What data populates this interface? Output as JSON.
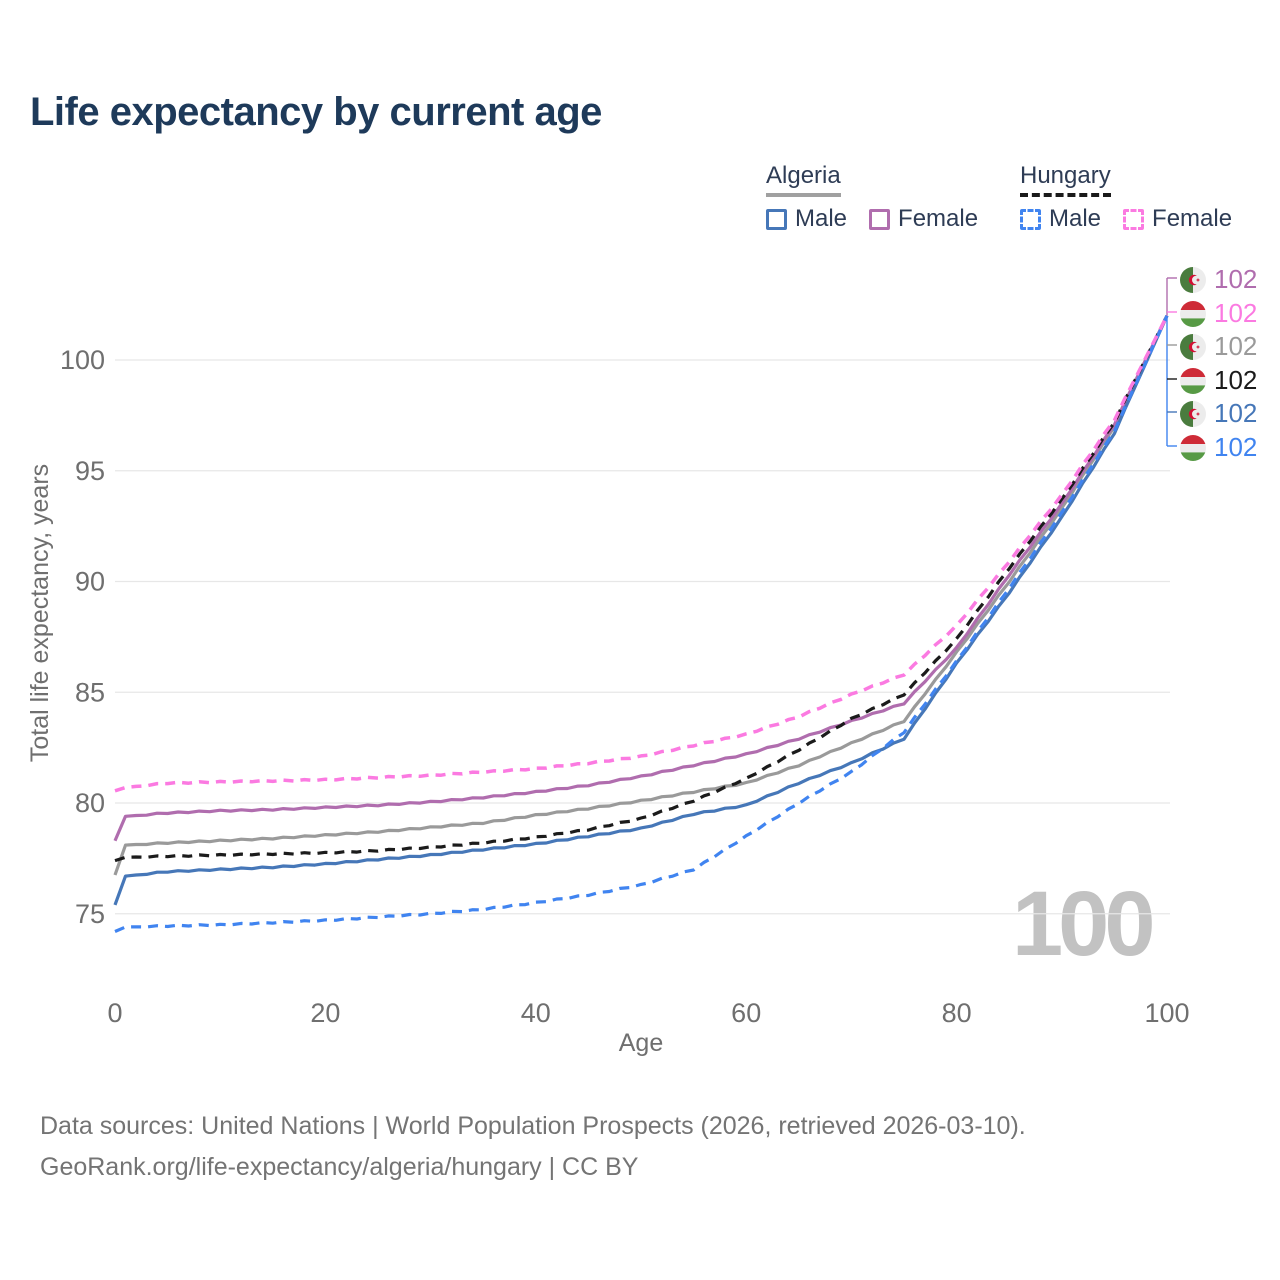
{
  "title": "Life expectancy by current age",
  "legend": {
    "algeria": {
      "title": "Algeria",
      "male": "Male",
      "female": "Female"
    },
    "hungary": {
      "title": "Hungary",
      "male": "Male",
      "female": "Female"
    }
  },
  "watermark": "100",
  "footer": {
    "line1": "Data sources: United Nations | World Population Prospects (2026, retrieved 2026-03-10).",
    "line2": "GeoRank.org/life-expectancy/algeria/hungary | CC BY"
  },
  "colors": {
    "title_text": "#1e3a5a",
    "legend_text": "#2e3c55",
    "axis_text": "#6f6f6f",
    "gridline": "#e7e7e7",
    "footer_text": "#747474",
    "watermark": "#c2c2c2"
  },
  "flags": {
    "algeria": {
      "green": "#4a7c3e",
      "white": "#ececec",
      "red": "#d21034"
    },
    "hungary": {
      "red": "#ce2b37",
      "white": "#ececec",
      "green": "#579a45"
    }
  },
  "end_labels": [
    {
      "series": "algeria-female",
      "flag": "algeria",
      "value": "102",
      "color": "#b06dae",
      "y": 278
    },
    {
      "series": "hungary-female",
      "flag": "hungary",
      "value": "102",
      "color": "#fb7ae1",
      "y": 312
    },
    {
      "series": "algeria-total",
      "flag": "algeria",
      "value": "102",
      "color": "#9a9a9a",
      "y": 345
    },
    {
      "series": "hungary-total",
      "flag": "hungary",
      "value": "102",
      "color": "#1b1b1b",
      "y": 379
    },
    {
      "series": "algeria-male",
      "flag": "algeria",
      "value": "102",
      "color": "#4677b8",
      "y": 412
    },
    {
      "series": "hungary-male",
      "flag": "hungary",
      "value": "102",
      "color": "#4084f0",
      "y": 446
    }
  ],
  "chart_data": {
    "type": "line",
    "title": "Life expectancy by current age",
    "xlabel": "Age",
    "ylabel": "Total life expectancy, years",
    "xlim": [
      0,
      100
    ],
    "ylim": [
      73,
      103
    ],
    "xticks": [
      0,
      20,
      40,
      60,
      80,
      100
    ],
    "yticks": [
      75,
      80,
      85,
      90,
      95,
      100
    ],
    "grid": "horizontal",
    "legend_position": "top-right",
    "ages": [
      0,
      1,
      5,
      10,
      15,
      20,
      25,
      30,
      35,
      40,
      45,
      50,
      55,
      60,
      65,
      70,
      75,
      80,
      85,
      90,
      95,
      100
    ],
    "series": [
      {
        "name": "algeria-female",
        "country": "Algeria",
        "sex": "Female",
        "color": "#b06dae",
        "dashed": false,
        "values": [
          78.3,
          79.4,
          79.55,
          79.65,
          79.7,
          79.8,
          79.9,
          80.05,
          80.25,
          80.5,
          80.8,
          81.2,
          81.7,
          82.2,
          82.9,
          83.7,
          84.5,
          87.0,
          90.3,
          93.5,
          97.1,
          102
        ]
      },
      {
        "name": "hungary-female",
        "country": "Hungary",
        "sex": "Female",
        "color": "#fb7ae1",
        "dashed": true,
        "values": [
          80.55,
          80.7,
          80.9,
          80.95,
          81.0,
          81.05,
          81.15,
          81.25,
          81.4,
          81.55,
          81.8,
          82.1,
          82.6,
          83.1,
          83.9,
          84.9,
          85.8,
          88.0,
          90.9,
          93.9,
          97.3,
          102
        ]
      },
      {
        "name": "algeria-total",
        "country": "Algeria",
        "sex": "Both",
        "color": "#9a9a9a",
        "dashed": false,
        "values": [
          76.75,
          78.1,
          78.2,
          78.3,
          78.4,
          78.55,
          78.7,
          78.9,
          79.1,
          79.45,
          79.75,
          80.1,
          80.5,
          80.9,
          81.7,
          82.7,
          83.7,
          86.8,
          90.0,
          93.3,
          97.0,
          102
        ]
      },
      {
        "name": "hungary-total",
        "country": "Hungary",
        "sex": "Both",
        "color": "#1b1b1b",
        "dashed": true,
        "values": [
          77.4,
          77.55,
          77.6,
          77.65,
          77.7,
          77.75,
          77.85,
          78.0,
          78.2,
          78.45,
          78.8,
          79.3,
          80.1,
          81.1,
          82.4,
          83.8,
          84.9,
          87.4,
          90.6,
          93.7,
          97.2,
          102
        ]
      },
      {
        "name": "algeria-male",
        "country": "Algeria",
        "sex": "Male",
        "color": "#4677b8",
        "dashed": false,
        "values": [
          75.4,
          76.7,
          76.9,
          77.0,
          77.1,
          77.25,
          77.45,
          77.65,
          77.9,
          78.15,
          78.5,
          78.85,
          79.5,
          79.9,
          80.9,
          81.8,
          82.9,
          86.3,
          89.5,
          92.9,
          96.7,
          102
        ]
      },
      {
        "name": "hungary-male",
        "country": "Hungary",
        "sex": "Male",
        "color": "#4084f0",
        "dashed": true,
        "values": [
          74.2,
          74.4,
          74.45,
          74.5,
          74.6,
          74.7,
          74.85,
          75.0,
          75.2,
          75.5,
          75.85,
          76.3,
          77.0,
          78.5,
          80.0,
          81.4,
          83.2,
          86.4,
          89.7,
          93.1,
          96.8,
          102
        ]
      }
    ]
  }
}
